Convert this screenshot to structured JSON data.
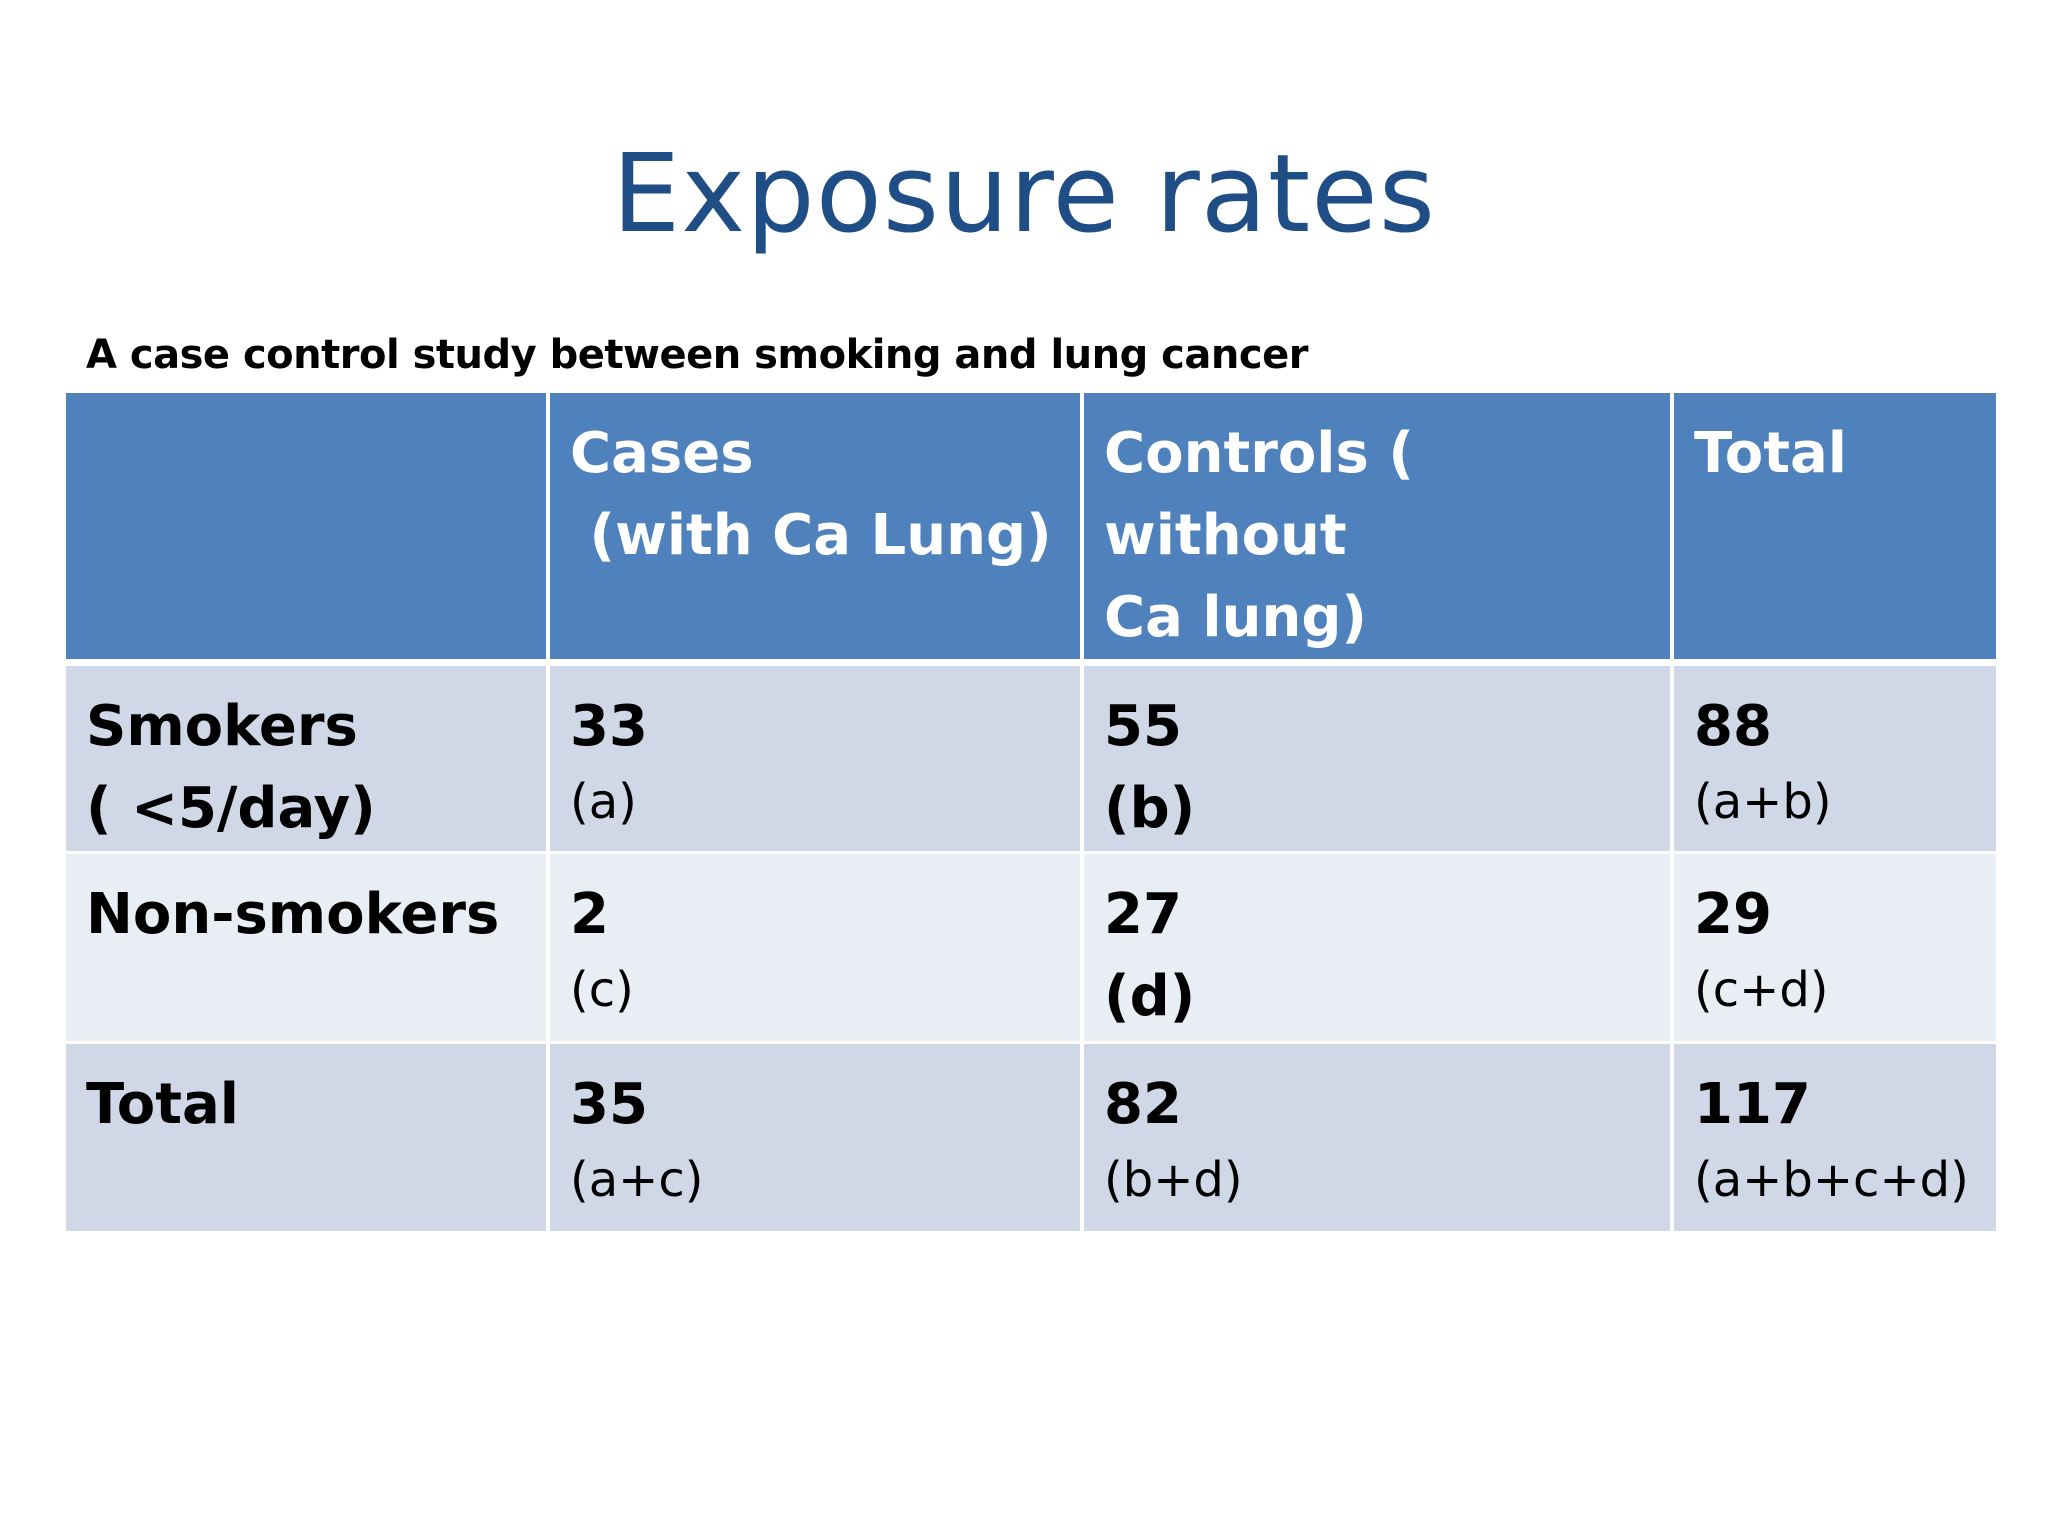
{
  "slide": {
    "title": "Exposure rates",
    "subtitle": "A case control study between smoking and lung cancer"
  },
  "table": {
    "headers": [
      {
        "line1": "",
        "line2": ""
      },
      {
        "line1": "Cases",
        "line2": " (with Ca Lung)"
      },
      {
        "line1": "Controls ( without",
        "line2": "Ca lung)"
      },
      {
        "line1": "Total",
        "line2": ""
      }
    ],
    "rows": [
      {
        "label_line1": "Smokers",
        "label_line2": "( <5/day)",
        "cells": [
          {
            "value": "33",
            "formula": "(a)"
          },
          {
            "value": "55",
            "formula": "(b)"
          },
          {
            "value": "88",
            "formula": "(a+b)"
          }
        ]
      },
      {
        "label_line1": "Non-smokers",
        "label_line2": "",
        "cells": [
          {
            "value": "2",
            "formula": "(c)"
          },
          {
            "value": "27",
            "formula": "(d)"
          },
          {
            "value": "29",
            "formula": "(c+d)"
          }
        ]
      },
      {
        "label_line1": "Total",
        "label_line2": "",
        "cells": [
          {
            "value": "35",
            "formula": "(a+c)"
          },
          {
            "value": "82",
            "formula": "(b+d)"
          },
          {
            "value": "117",
            "formula": "(a+b+c+d)"
          }
        ]
      }
    ]
  },
  "colors": {
    "title": "#1f4e86",
    "header_fill": "#4f81bd",
    "row_dark_fill": "#d0d8e8",
    "row_light_fill": "#e9edf4"
  }
}
